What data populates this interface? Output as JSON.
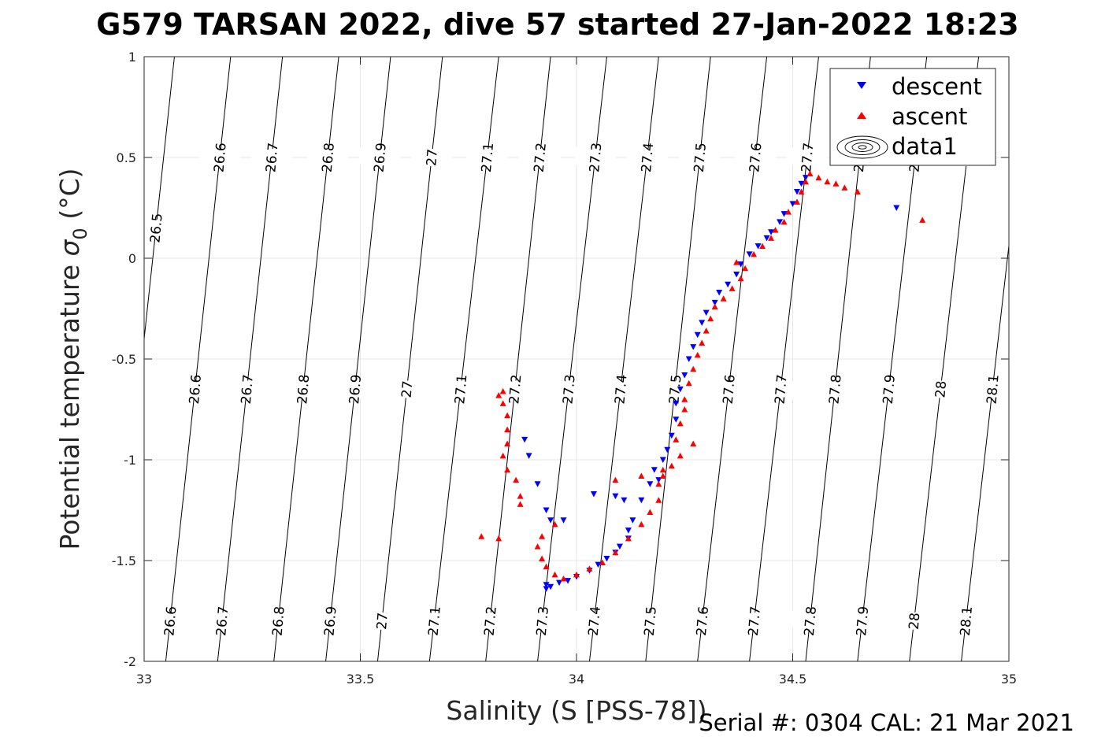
{
  "title": "G579 TARSAN 2022, dive 57 started 27-Jan-2022 18:23",
  "footer": "Serial #: 0304  CAL: 21 Mar 2021",
  "colors": {
    "descent": "#0000ff",
    "ascent": "#ff0000",
    "grid": "#e6e6e6",
    "axis": "#262626",
    "isopycnal": "#000000"
  },
  "chart_data": {
    "type": "scatter",
    "xlabel": "Salinity (S [PSS-78])",
    "ylabel_main": "Potential temperature ",
    "ylabel_symbol": "σ",
    "ylabel_sub": "0",
    "ylabel_unit": " (°C)",
    "xlim": [
      33,
      35
    ],
    "ylim": [
      -2,
      1
    ],
    "xticks": [
      "33",
      "33.5",
      "34",
      "34.5",
      "35"
    ],
    "yticks": [
      "-2",
      "-1.5",
      "-1",
      "-0.5",
      "0",
      "0.5",
      "1"
    ],
    "grid": true,
    "legend_position": "top-right",
    "legend": [
      "descent",
      "ascent",
      "data1"
    ],
    "isopycnal_labels": [
      "26.5",
      "26.6",
      "26.7",
      "26.8",
      "26.9",
      "27",
      "27.1",
      "27.2",
      "27.3",
      "27.4",
      "27.5",
      "27.6",
      "27.7",
      "27.8",
      "27.9",
      "28",
      "28.1"
    ],
    "isopycnals": [
      {
        "sigma": 26.5,
        "x_bottom": 32.92,
        "x_top": 33.07
      },
      {
        "sigma": 26.6,
        "x_bottom": 33.05,
        "x_top": 33.2
      },
      {
        "sigma": 26.7,
        "x_bottom": 33.17,
        "x_top": 33.32
      },
      {
        "sigma": 26.8,
        "x_bottom": 33.3,
        "x_top": 33.45
      },
      {
        "sigma": 26.9,
        "x_bottom": 33.42,
        "x_top": 33.57
      },
      {
        "sigma": 27.0,
        "x_bottom": 33.54,
        "x_top": 33.69
      },
      {
        "sigma": 27.1,
        "x_bottom": 33.66,
        "x_top": 33.82
      },
      {
        "sigma": 27.2,
        "x_bottom": 33.79,
        "x_top": 33.94
      },
      {
        "sigma": 27.3,
        "x_bottom": 33.91,
        "x_top": 34.07
      },
      {
        "sigma": 27.4,
        "x_bottom": 34.03,
        "x_top": 34.19
      },
      {
        "sigma": 27.5,
        "x_bottom": 34.16,
        "x_top": 34.31
      },
      {
        "sigma": 27.6,
        "x_bottom": 34.28,
        "x_top": 34.44
      },
      {
        "sigma": 27.7,
        "x_bottom": 34.4,
        "x_top": 34.56
      },
      {
        "sigma": 27.8,
        "x_bottom": 34.53,
        "x_top": 34.68
      },
      {
        "sigma": 27.9,
        "x_bottom": 34.65,
        "x_top": 34.81
      },
      {
        "sigma": 28.0,
        "x_bottom": 34.77,
        "x_top": 34.93
      },
      {
        "sigma": 28.1,
        "x_bottom": 34.89,
        "x_top": 35.05
      }
    ],
    "series": [
      {
        "name": "descent",
        "marker": "triangle-down",
        "points": [
          [
            33.93,
            -1.64
          ],
          [
            33.94,
            -1.63
          ],
          [
            33.93,
            -1.62
          ],
          [
            33.96,
            -1.61
          ],
          [
            33.98,
            -1.6
          ],
          [
            34.0,
            -1.58
          ],
          [
            34.03,
            -1.55
          ],
          [
            34.05,
            -1.52
          ],
          [
            34.07,
            -1.49
          ],
          [
            34.09,
            -1.46
          ],
          [
            34.1,
            -1.43
          ],
          [
            34.12,
            -1.39
          ],
          [
            34.12,
            -1.35
          ],
          [
            34.13,
            -1.3
          ],
          [
            34.11,
            -1.2
          ],
          [
            34.09,
            -1.18
          ],
          [
            34.15,
            -1.2
          ],
          [
            34.17,
            -1.12
          ],
          [
            34.18,
            -1.05
          ],
          [
            34.19,
            -1.1
          ],
          [
            34.2,
            -1.0
          ],
          [
            34.21,
            -0.95
          ],
          [
            34.22,
            -0.88
          ],
          [
            34.23,
            -0.8
          ],
          [
            34.23,
            -0.72
          ],
          [
            34.24,
            -0.65
          ],
          [
            34.25,
            -0.58
          ],
          [
            34.26,
            -0.5
          ],
          [
            34.27,
            -0.44
          ],
          [
            34.28,
            -0.38
          ],
          [
            34.29,
            -0.32
          ],
          [
            34.3,
            -0.27
          ],
          [
            34.32,
            -0.22
          ],
          [
            34.33,
            -0.17
          ],
          [
            34.35,
            -0.13
          ],
          [
            34.37,
            -0.08
          ],
          [
            34.38,
            -0.03
          ],
          [
            34.4,
            0.02
          ],
          [
            34.42,
            0.06
          ],
          [
            34.44,
            0.1
          ],
          [
            34.45,
            0.13
          ],
          [
            34.47,
            0.18
          ],
          [
            34.48,
            0.22
          ],
          [
            34.5,
            0.27
          ],
          [
            34.51,
            0.33
          ],
          [
            34.52,
            0.37
          ],
          [
            34.53,
            0.4
          ],
          [
            33.88,
            -0.9
          ],
          [
            33.89,
            -0.98
          ],
          [
            33.91,
            -1.12
          ],
          [
            33.93,
            -1.25
          ],
          [
            33.94,
            -1.3
          ],
          [
            33.97,
            -1.3
          ],
          [
            34.04,
            -1.17
          ],
          [
            34.74,
            0.25
          ]
        ]
      },
      {
        "name": "ascent",
        "marker": "triangle-up",
        "points": [
          [
            33.82,
            -0.68
          ],
          [
            33.83,
            -0.66
          ],
          [
            33.83,
            -0.72
          ],
          [
            33.84,
            -0.78
          ],
          [
            33.84,
            -0.85
          ],
          [
            33.84,
            -0.92
          ],
          [
            33.83,
            -0.98
          ],
          [
            33.84,
            -1.05
          ],
          [
            33.86,
            -1.1
          ],
          [
            33.87,
            -1.18
          ],
          [
            33.92,
            -1.38
          ],
          [
            33.91,
            -1.43
          ],
          [
            33.92,
            -1.49
          ],
          [
            33.93,
            -1.53
          ],
          [
            33.95,
            -1.57
          ],
          [
            33.97,
            -1.59
          ],
          [
            34.0,
            -1.57
          ],
          [
            34.03,
            -1.54
          ],
          [
            34.06,
            -1.51
          ],
          [
            34.09,
            -1.46
          ],
          [
            34.12,
            -1.39
          ],
          [
            34.15,
            -1.32
          ],
          [
            34.17,
            -1.26
          ],
          [
            34.19,
            -1.2
          ],
          [
            34.19,
            -1.12
          ],
          [
            34.2,
            -1.08
          ],
          [
            34.22,
            -1.03
          ],
          [
            34.24,
            -0.98
          ],
          [
            34.23,
            -0.9
          ],
          [
            34.24,
            -0.82
          ],
          [
            34.25,
            -0.75
          ],
          [
            34.25,
            -0.7
          ],
          [
            34.26,
            -0.62
          ],
          [
            34.27,
            -0.55
          ],
          [
            34.28,
            -0.48
          ],
          [
            34.29,
            -0.42
          ],
          [
            34.3,
            -0.36
          ],
          [
            34.31,
            -0.3
          ],
          [
            34.32,
            -0.24
          ],
          [
            34.34,
            -0.2
          ],
          [
            34.36,
            -0.15
          ],
          [
            34.38,
            -0.1
          ],
          [
            34.37,
            -0.02
          ],
          [
            34.39,
            -0.05
          ],
          [
            34.41,
            0.02
          ],
          [
            34.43,
            0.06
          ],
          [
            34.45,
            0.1
          ],
          [
            34.46,
            0.14
          ],
          [
            34.48,
            0.18
          ],
          [
            34.49,
            0.23
          ],
          [
            34.51,
            0.28
          ],
          [
            34.52,
            0.33
          ],
          [
            34.53,
            0.38
          ],
          [
            34.54,
            0.42
          ],
          [
            34.56,
            0.4
          ],
          [
            34.58,
            0.38
          ],
          [
            34.6,
            0.37
          ],
          [
            34.62,
            0.35
          ],
          [
            34.65,
            0.33
          ],
          [
            34.09,
            -1.1
          ],
          [
            34.15,
            -1.08
          ],
          [
            34.2,
            -1.05
          ],
          [
            34.27,
            -0.92
          ],
          [
            33.78,
            -1.38
          ],
          [
            33.82,
            -1.39
          ],
          [
            33.87,
            -1.22
          ],
          [
            33.95,
            -1.32
          ],
          [
            34.8,
            0.19
          ]
        ]
      }
    ]
  }
}
